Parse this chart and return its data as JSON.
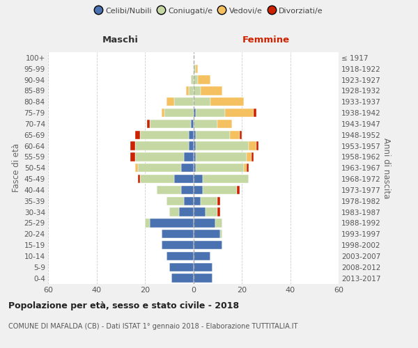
{
  "age_groups": [
    "0-4",
    "5-9",
    "10-14",
    "15-19",
    "20-24",
    "25-29",
    "30-34",
    "35-39",
    "40-44",
    "45-49",
    "50-54",
    "55-59",
    "60-64",
    "65-69",
    "70-74",
    "75-79",
    "80-84",
    "85-89",
    "90-94",
    "95-99",
    "100+"
  ],
  "birth_years": [
    "2013-2017",
    "2008-2012",
    "2003-2007",
    "1998-2002",
    "1993-1997",
    "1988-1992",
    "1983-1987",
    "1978-1982",
    "1973-1977",
    "1968-1972",
    "1963-1967",
    "1958-1962",
    "1953-1957",
    "1948-1952",
    "1943-1947",
    "1938-1942",
    "1933-1937",
    "1928-1932",
    "1923-1927",
    "1918-1922",
    "≤ 1917"
  ],
  "males": {
    "celibi": [
      9,
      10,
      11,
      13,
      13,
      18,
      6,
      4,
      5,
      8,
      5,
      4,
      2,
      2,
      1,
      0,
      0,
      0,
      0,
      0,
      0
    ],
    "coniugati": [
      0,
      0,
      0,
      0,
      0,
      2,
      4,
      7,
      10,
      14,
      18,
      20,
      22,
      20,
      17,
      12,
      8,
      2,
      1,
      0,
      0
    ],
    "vedovi": [
      0,
      0,
      0,
      0,
      0,
      0,
      0,
      0,
      0,
      0,
      1,
      0,
      0,
      0,
      0,
      1,
      3,
      1,
      0,
      0,
      0
    ],
    "divorziati": [
      0,
      0,
      0,
      0,
      0,
      0,
      0,
      0,
      0,
      1,
      0,
      2,
      2,
      2,
      1,
      0,
      0,
      0,
      0,
      0,
      0
    ]
  },
  "females": {
    "nubili": [
      8,
      8,
      7,
      12,
      11,
      9,
      5,
      3,
      4,
      4,
      1,
      1,
      1,
      1,
      0,
      1,
      0,
      0,
      0,
      0,
      0
    ],
    "coniugate": [
      0,
      0,
      0,
      0,
      1,
      3,
      5,
      7,
      14,
      19,
      20,
      21,
      22,
      14,
      10,
      12,
      7,
      3,
      2,
      1,
      0
    ],
    "vedove": [
      0,
      0,
      0,
      0,
      0,
      0,
      0,
      0,
      0,
      0,
      1,
      2,
      3,
      4,
      6,
      12,
      14,
      9,
      5,
      1,
      0
    ],
    "divorziate": [
      0,
      0,
      0,
      0,
      0,
      0,
      1,
      1,
      1,
      0,
      1,
      1,
      1,
      1,
      0,
      1,
      0,
      0,
      0,
      0,
      0
    ]
  },
  "colors": {
    "celibi_nubili": "#4a72b0",
    "coniugati": "#c5d8a4",
    "vedovi": "#f4c060",
    "divorziati": "#cc2200"
  },
  "xlim": 60,
  "title": "Popolazione per età, sesso e stato civile - 2018",
  "subtitle": "COMUNE DI MAFALDA (CB) - Dati ISTAT 1° gennaio 2018 - Elaborazione TUTTITALIA.IT",
  "ylabel_left": "Fasce di età",
  "ylabel_right": "Anni di nascita",
  "xlabel_left": "Maschi",
  "xlabel_right": "Femmine",
  "bg_color": "#f0f0f0",
  "plot_bg_color": "#ffffff",
  "legend_labels": [
    "Celibi/Nubili",
    "Coniugati/e",
    "Vedovi/e",
    "Divorziati/e"
  ]
}
